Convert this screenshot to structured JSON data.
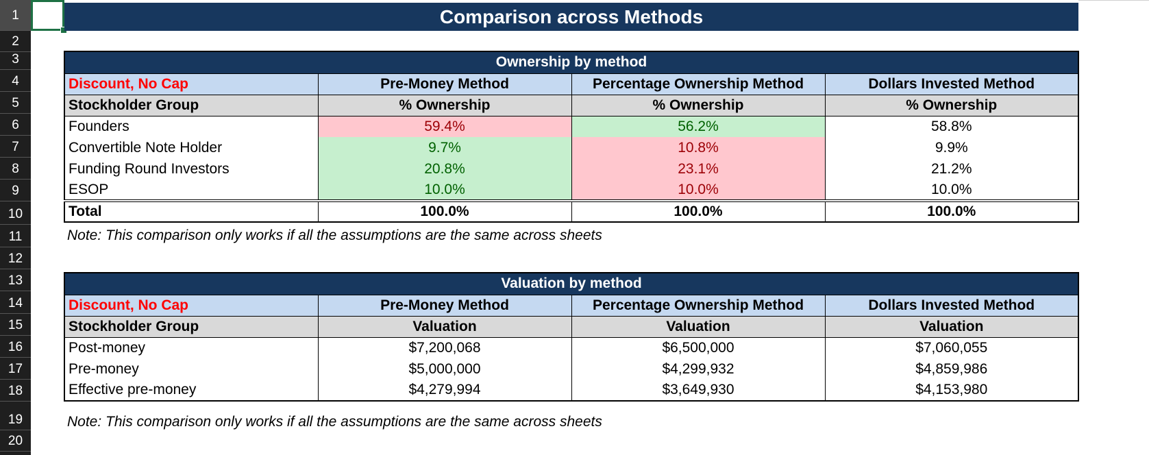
{
  "row_numbers": [
    "1",
    "2",
    "3",
    "4",
    "5",
    "6",
    "7",
    "8",
    "9",
    "10",
    "11",
    "12",
    "13",
    "14",
    "15",
    "16",
    "17",
    "18",
    "19",
    "20"
  ],
  "banner_title": "Comparison across Methods",
  "ownership": {
    "title": "Ownership by method",
    "label": "Discount, No Cap",
    "methods": [
      "Pre-Money Method",
      "Percentage Ownership Method",
      "Dollars Invested Method"
    ],
    "group_header": "Stockholder Group",
    "col_sub": "% Ownership",
    "rows": [
      {
        "name": "Founders",
        "values": [
          "59.4%",
          "56.2%",
          "58.8%"
        ]
      },
      {
        "name": "Convertible Note Holder",
        "values": [
          "9.7%",
          "10.8%",
          "9.9%"
        ]
      },
      {
        "name": "Funding Round Investors",
        "values": [
          "20.8%",
          "23.1%",
          "21.2%"
        ]
      },
      {
        "name": "ESOP",
        "values": [
          "10.0%",
          "10.0%",
          "10.0%"
        ]
      }
    ],
    "total": {
      "name": "Total",
      "values": [
        "100.0%",
        "100.0%",
        "100.0%"
      ]
    },
    "note": "Note: This comparison only works if all the assumptions are the same across sheets"
  },
  "valuation": {
    "title": "Valuation by method",
    "label": "Discount, No Cap",
    "methods": [
      "Pre-Money Method",
      "Percentage Ownership Method",
      "Dollars Invested Method"
    ],
    "group_header": "Stockholder Group",
    "col_sub": "Valuation",
    "rows": [
      {
        "name": "Post-money",
        "values": [
          "$7,200,068",
          "$6,500,000",
          "$7,060,055"
        ]
      },
      {
        "name": "Pre-money",
        "values": [
          "$5,000,000",
          "$4,299,932",
          "$4,859,986"
        ]
      },
      {
        "name": "Effective pre-money",
        "values": [
          "$4,279,994",
          "$3,649,930",
          "$4,153,980"
        ]
      }
    ],
    "note": "Note: This comparison only works if all the assumptions are the same across sheets"
  },
  "colors": {
    "header_navy": "#17375e",
    "method_blue": "#c5d9f1",
    "sub_gray": "#d9d9d9",
    "bad_fill": "#ffc7ce",
    "bad_text": "#9c0006",
    "good_fill": "#c6efce",
    "good_text": "#006100",
    "label_red": "#ff0000"
  }
}
